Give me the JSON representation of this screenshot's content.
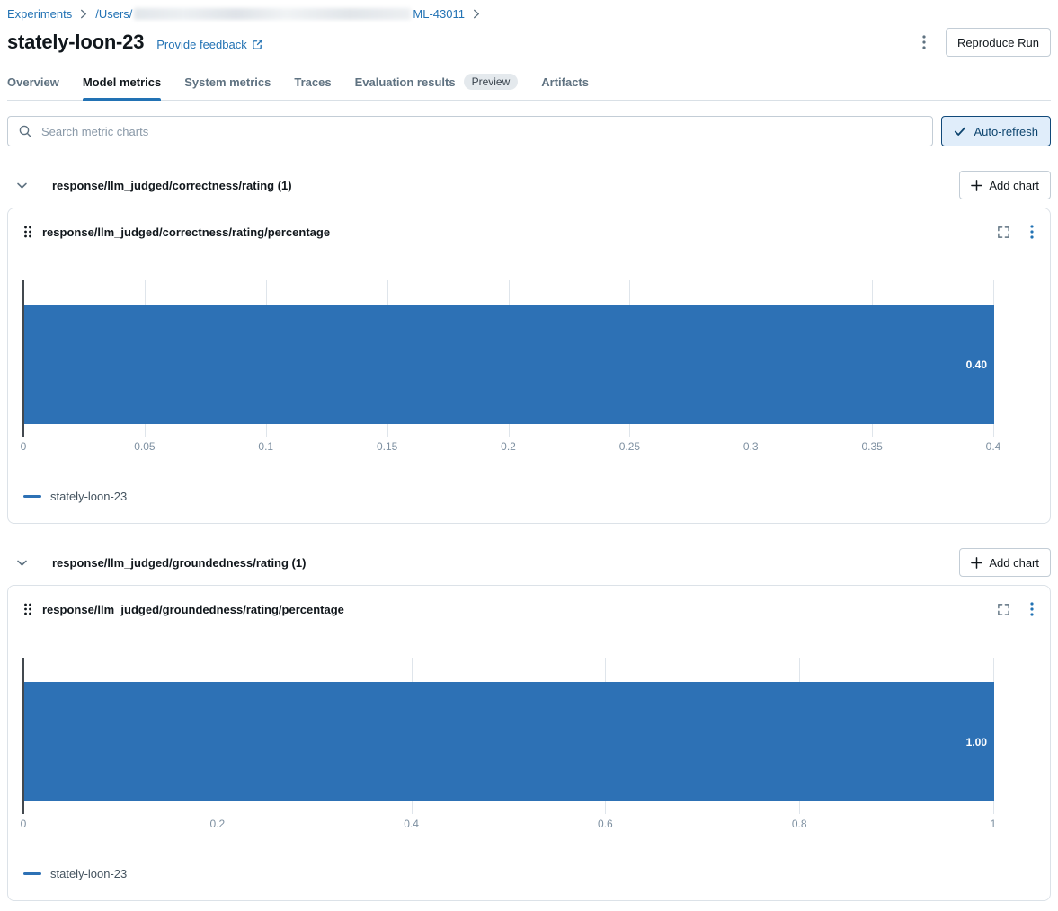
{
  "breadcrumb": {
    "experiments": "Experiments",
    "path_prefix": "/Users/",
    "path_suffix": "ML-43011"
  },
  "header": {
    "title": "stately-loon-23",
    "feedback_link": "Provide feedback",
    "reproduce_button": "Reproduce Run"
  },
  "tabs": [
    {
      "label": "Overview",
      "active": false
    },
    {
      "label": "Model metrics",
      "active": true
    },
    {
      "label": "System metrics",
      "active": false
    },
    {
      "label": "Traces",
      "active": false
    },
    {
      "label": "Evaluation results",
      "active": false,
      "badge": "Preview"
    },
    {
      "label": "Artifacts",
      "active": false
    }
  ],
  "toolbar": {
    "search_placeholder": "Search metric charts",
    "auto_refresh_label": "Auto-refresh"
  },
  "sections": [
    {
      "title": "response/llm_judged/correctness/rating (1)",
      "add_chart_label": "Add chart"
    },
    {
      "title": "response/llm_judged/groundedness/rating (1)",
      "add_chart_label": "Add chart"
    }
  ],
  "chart_data": [
    {
      "type": "bar",
      "orientation": "horizontal",
      "title": "response/llm_judged/correctness/rating/percentage",
      "categories": [
        "stately-loon-23"
      ],
      "values": [
        0.4
      ],
      "value_labels": [
        "0.40"
      ],
      "x_ticks": [
        "0",
        "0.05",
        "0.1",
        "0.15",
        "0.2",
        "0.25",
        "0.3",
        "0.35",
        "0.4"
      ],
      "xlim": [
        0,
        0.4
      ],
      "xlabel": "",
      "ylabel": "",
      "grid": true,
      "legend": [
        "stately-loon-23"
      ],
      "legend_position": "bottom-left",
      "bar_color": "#2D71B5"
    },
    {
      "type": "bar",
      "orientation": "horizontal",
      "title": "response/llm_judged/groundedness/rating/percentage",
      "categories": [
        "stately-loon-23"
      ],
      "values": [
        1.0
      ],
      "value_labels": [
        "1.00"
      ],
      "x_ticks": [
        "0",
        "0.2",
        "0.4",
        "0.6",
        "0.8",
        "1"
      ],
      "xlim": [
        0,
        1
      ],
      "xlabel": "",
      "ylabel": "",
      "grid": true,
      "legend": [
        "stately-loon-23"
      ],
      "legend_position": "bottom-left",
      "bar_color": "#2D71B5"
    }
  ],
  "icons": {
    "breadcrumb_separator": "chevron-right",
    "search": "magnifier",
    "auto_refresh_check": "checkmark",
    "section_collapse": "chevron-down",
    "add_chart": "plus",
    "feedback": "external-link",
    "chart_expand": "fullscreen-corners",
    "chart_menu": "kebab-vertical",
    "page_menu": "kebab-vertical",
    "chart_drag": "drag-dots"
  },
  "colors": {
    "accent_blue": "#2272B4",
    "bar_blue": "#2D71B5",
    "auto_refresh_bg": "#E0EDFA",
    "auto_refresh_border": "#10497A",
    "tab_underline": "#2272B4"
  }
}
